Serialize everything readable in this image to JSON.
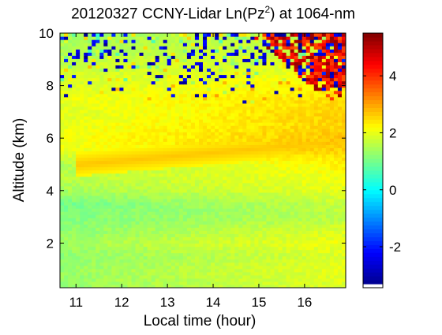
{
  "chart_data": {
    "type": "heatmap",
    "title": {
      "prefix": "20120327 CCNY-Lidar Ln(Pz",
      "superscript": "2",
      "suffix": ") at 1064-nm"
    },
    "xlabel": "Local time (hour)",
    "ylabel": "Altitude (km)",
    "xlim": [
      10.65,
      16.9
    ],
    "ylim": [
      0.3,
      10
    ],
    "xticks": [
      11,
      12,
      13,
      14,
      15,
      16
    ],
    "yticks": [
      2,
      4,
      6,
      8,
      10
    ],
    "colorbar": {
      "range": [
        -3.3,
        5.5
      ],
      "ticks": [
        -2,
        0,
        2,
        4
      ],
      "colormap": "jet",
      "stops": [
        "#00008f",
        "#0000ff",
        "#0080ff",
        "#00ffff",
        "#80ff80",
        "#ffff00",
        "#ff8000",
        "#ff0000",
        "#800000"
      ]
    },
    "profile": {
      "altitude_km": [
        0.3,
        1.0,
        1.5,
        2.0,
        2.5,
        3.0,
        3.5,
        4.0,
        4.5,
        5.0,
        5.5,
        6.0,
        6.5,
        7.0,
        7.5,
        8.0,
        8.5,
        9.0,
        9.5,
        10.0
      ],
      "value_start": [
        1.3,
        1.3,
        1.2,
        1.4,
        1.2,
        1.1,
        1.0,
        1.4,
        1.6,
        1.5,
        2.0,
        2.1,
        2.0,
        1.9,
        2.0,
        1.9,
        1.8,
        1.6,
        1.5,
        1.4
      ],
      "value_end": [
        1.9,
        2.0,
        1.9,
        2.1,
        1.9,
        1.6,
        1.7,
        2.0,
        2.1,
        2.3,
        2.6,
        2.7,
        2.6,
        2.6,
        2.5,
        2.3,
        2.1,
        1.9,
        1.8,
        1.7
      ]
    },
    "aerosol_layer": {
      "start": {
        "time": 11.0,
        "altitude_km": 5.0
      },
      "end": {
        "time": 16.9,
        "altitude_km": 5.9
      },
      "value": 2.7
    },
    "cloud": {
      "time_range": [
        14.8,
        16.9
      ],
      "altitude_km": [
        7.5,
        10.0
      ],
      "value": 5.3
    },
    "grid": false,
    "legend": "none"
  }
}
